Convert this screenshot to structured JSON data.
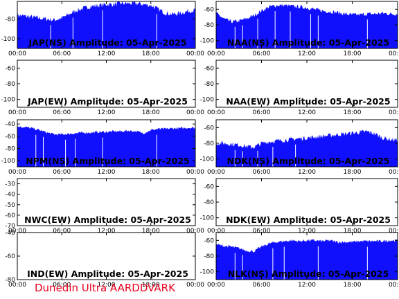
{
  "credit": "Dunedin Ultra AARDDVARK",
  "colors": {
    "signal": "#1010ff",
    "marker": "#ffffff",
    "axis": "#000000",
    "credit": "#e8001c"
  },
  "x_ticks": [
    "00:00",
    "06:00",
    "12:00",
    "18:00",
    "00:00"
  ],
  "chart_data": [
    {
      "type": "area",
      "title": "JAP(NS) Amplitude: 05-Apr-2025",
      "column": "left",
      "row": 1,
      "y_ticks": [
        -80,
        -100
      ],
      "ylim": [
        -110,
        -62
      ],
      "has_data": true,
      "noise": 2.5,
      "x": [
        0,
        1,
        2,
        3,
        4,
        5,
        6,
        7,
        8,
        9,
        10,
        11,
        12,
        13,
        14,
        15,
        16,
        17,
        18,
        19,
        20,
        21,
        22,
        23,
        24
      ],
      "y": [
        -76,
        -77,
        -78,
        -79,
        -80,
        -81,
        -79,
        -75,
        -71,
        -69,
        -67,
        -66,
        -65,
        -65,
        -64,
        -64,
        -64,
        -65,
        -66,
        -70,
        -74,
        -75,
        -74,
        -72,
        -71
      ],
      "markers": [
        4.5,
        7.5,
        11.5,
        18.8
      ]
    },
    {
      "type": "area",
      "title": "NAA(NS) Amplitude: 05-Apr-2025",
      "column": "right",
      "row": 1,
      "y_ticks": [
        -60,
        -80,
        -100
      ],
      "ylim": [
        -110,
        -50
      ],
      "has_data": true,
      "noise": 2.5,
      "x": [
        0,
        1,
        2,
        3,
        4,
        5,
        6,
        7,
        8,
        9,
        10,
        11,
        12,
        13,
        14,
        15,
        16,
        17,
        18,
        19,
        20,
        21,
        22,
        23,
        24
      ],
      "y": [
        -65,
        -72,
        -76,
        -75,
        -72,
        -68,
        -62,
        -57,
        -55,
        -55,
        -56,
        -57,
        -58,
        -60,
        -62,
        -63,
        -64,
        -66,
        -67,
        -67,
        -66,
        -66,
        -65,
        -66,
        -66
      ],
      "markers": [
        2.5,
        3.5,
        5.5,
        7.8,
        9.8,
        12.5,
        13.5,
        20.0
      ]
    },
    {
      "type": "area",
      "title": "JAP(EW) Amplitude: 05-Apr-2025",
      "column": "left",
      "row": 2,
      "y_ticks": [
        -60,
        -80,
        -100
      ],
      "ylim": [
        -110,
        -50
      ],
      "has_data": false
    },
    {
      "type": "area",
      "title": "NAA(EW) Amplitude: 05-Apr-2025",
      "column": "right",
      "row": 2,
      "y_ticks": [
        -60,
        -80,
        -100
      ],
      "ylim": [
        -110,
        -50
      ],
      "has_data": false
    },
    {
      "type": "area",
      "title": "NPM(NS) Amplitude: 05-Apr-2025",
      "column": "left",
      "row": 3,
      "y_ticks": [
        -40,
        -60,
        -80,
        -100
      ],
      "ylim": [
        -110,
        -33
      ],
      "has_data": true,
      "noise": 2.0,
      "x": [
        0,
        1,
        2,
        3,
        4,
        5,
        6,
        7,
        8,
        9,
        10,
        11,
        12,
        13,
        14,
        15,
        16,
        17,
        18,
        19,
        20,
        21,
        22,
        23,
        24
      ],
      "y": [
        -44,
        -45,
        -47,
        -50,
        -54,
        -57,
        -57,
        -56,
        -55,
        -54,
        -54,
        -53,
        -53,
        -52,
        -52,
        -51,
        -52,
        -55,
        -50,
        -48,
        -48,
        -47,
        -47,
        -46,
        -46
      ],
      "markers": [
        2.5,
        3.5,
        6.5,
        7.8,
        11.5,
        18.8
      ]
    },
    {
      "type": "area",
      "title": "NDK(NS) Amplitude: 05-Apr-2025",
      "column": "right",
      "row": 3,
      "y_ticks": [
        -60,
        -80,
        -100
      ],
      "ylim": [
        -110,
        -50
      ],
      "has_data": true,
      "noise": 3.0,
      "x": [
        0,
        1,
        2,
        3,
        4,
        5,
        6,
        7,
        8,
        9,
        10,
        11,
        12,
        13,
        14,
        15,
        16,
        17,
        18,
        19,
        20,
        21,
        22,
        23,
        24
      ],
      "y": [
        -80,
        -80,
        -81,
        -82,
        -84,
        -85,
        -80,
        -78,
        -77,
        -76,
        -75,
        -74,
        -73,
        -72,
        -71,
        -70,
        -69,
        -68,
        -67,
        -66,
        -65,
        -68,
        -73,
        -75,
        -76
      ],
      "markers": [
        2.5,
        3.5,
        5.5,
        7.5,
        10.5
      ]
    },
    {
      "type": "area",
      "title": "NWC(EW) Amplitude: 05-Apr-2025",
      "column": "left",
      "row": 4,
      "y_ticks": [
        -30,
        -40,
        -50,
        -60,
        -70
      ],
      "ylim": [
        -70,
        -25
      ],
      "has_data": false
    },
    {
      "type": "area",
      "title": "NDK(EW) Amplitude: 05-Apr-2025",
      "column": "right",
      "row": 4,
      "y_ticks": [
        -60,
        -80,
        -100
      ],
      "ylim": [
        -110,
        -50
      ],
      "has_data": false
    },
    {
      "type": "area",
      "title": "IND(EW) Amplitude: 05-Apr-2025",
      "column": "left",
      "row": 5,
      "y_ticks": [
        -40,
        -60,
        -80
      ],
      "ylim": [
        -80,
        -40
      ],
      "has_data": false
    },
    {
      "type": "area",
      "title": "NLK(NS) Amplitude: 05-Apr-2025",
      "column": "right",
      "row": 5,
      "y_ticks": [
        -60,
        -80,
        -100
      ],
      "ylim": [
        -110,
        -50
      ],
      "has_data": true,
      "noise": 1.8,
      "x": [
        0,
        1,
        2,
        3,
        4,
        5,
        6,
        7,
        8,
        9,
        10,
        11,
        12,
        13,
        14,
        15,
        16,
        17,
        18,
        19,
        20,
        21,
        22,
        23,
        24
      ],
      "y": [
        -65,
        -67,
        -68,
        -70,
        -73,
        -74,
        -68,
        -64,
        -62,
        -61,
        -60,
        -61,
        -60,
        -60,
        -61,
        -60,
        -62,
        -62,
        -62,
        -61,
        -61,
        -61,
        -61,
        -60,
        -60
      ],
      "markers": [
        2.5,
        3.5,
        7.5,
        9.0,
        13.5,
        20.0
      ]
    }
  ]
}
